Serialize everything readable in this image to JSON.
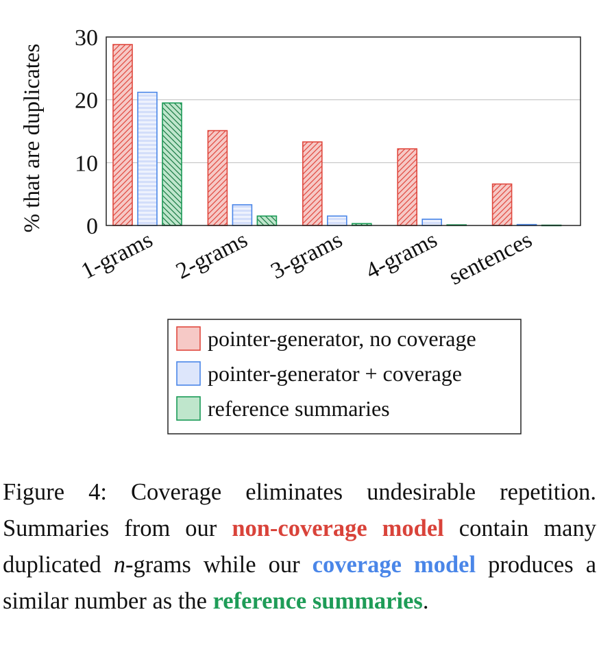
{
  "chart_data": {
    "type": "bar",
    "ylabel": "% that are duplicates",
    "ylim": [
      0,
      30
    ],
    "yticks": [
      0,
      10,
      20,
      30
    ],
    "grid": true,
    "legend_position": "bottom",
    "categories": [
      "1-grams",
      "2-grams",
      "3-grams",
      "4-grams",
      "sentences"
    ],
    "series": [
      {
        "name": "pointer-generator, no coverage",
        "values": [
          28.8,
          15.1,
          13.3,
          12.2,
          6.6
        ],
        "stroke": "#e0483e",
        "fill": "#f6c9c6",
        "pattern": "diag-right"
      },
      {
        "name": "pointer-generator + coverage",
        "values": [
          21.2,
          3.3,
          1.5,
          1.0,
          0.15
        ],
        "stroke": "#4a86e8",
        "fill": "#dde6fb",
        "pattern": "horizontal"
      },
      {
        "name": "reference summaries",
        "values": [
          19.5,
          1.5,
          0.3,
          0.1,
          0.05
        ],
        "stroke": "#1a9a56",
        "fill": "#bfe6cc",
        "pattern": "diag-left"
      }
    ]
  },
  "caption": {
    "fig": "Figure 4:",
    "t1": " Coverage eliminates undesirable repetition. Summaries from our ",
    "h1": "non-coverage model",
    "t2": " contain many duplicated ",
    "n": "n",
    "t3": "-grams while our ",
    "h2": "coverage model",
    "t4": " produces a similar number as the ",
    "h3": "reference summaries",
    "t5": "."
  }
}
